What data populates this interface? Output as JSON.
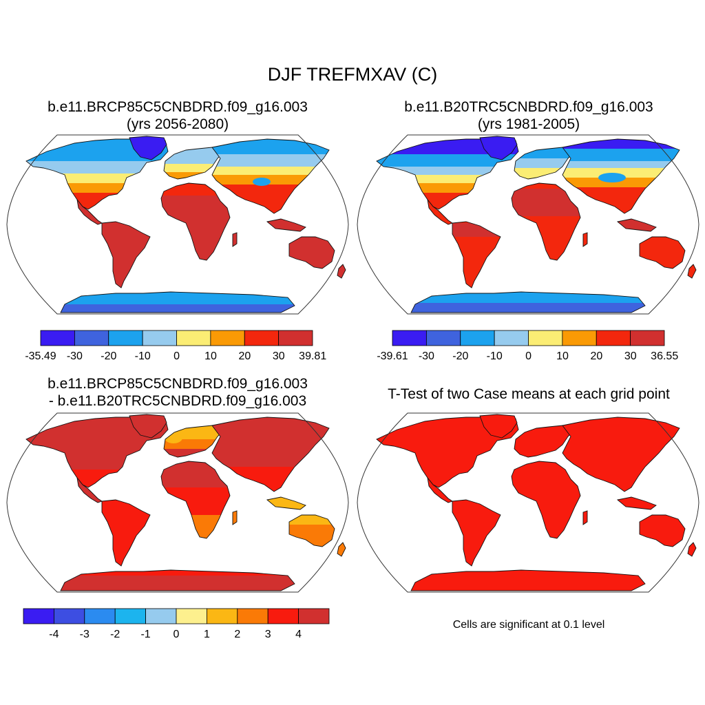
{
  "title": "DJF TREFMXAV (C)",
  "panels": [
    {
      "title_line1": "b.e11.BRCP85C5CNBDRD.f09_g16.003",
      "title_line2": "(yrs 2056-2080)",
      "colorbar": {
        "labels": [
          "-35.49",
          "-30",
          "-20",
          "-10",
          "0",
          "10",
          "20",
          "30",
          "39.81"
        ],
        "colors": [
          "#3a1cf2",
          "#3f63de",
          "#1ca2ee",
          "#96cbee",
          "#fbed74",
          "#fa9a05",
          "#f3270d",
          "#d1302f"
        ]
      }
    },
    {
      "title_line1": "b.e11.B20TRC5CNBDRD.f09_g16.003",
      "title_line2": "(yrs 1981-2005)",
      "colorbar": {
        "labels": [
          "-39.61",
          "-30",
          "-20",
          "-10",
          "0",
          "10",
          "20",
          "30",
          "36.55"
        ],
        "colors": [
          "#3a1cf2",
          "#3f63de",
          "#1ca2ee",
          "#96cbee",
          "#fbed74",
          "#fa9a05",
          "#f3270d",
          "#d1302f"
        ]
      }
    },
    {
      "title_line1": "b.e11.BRCP85C5CNBDRD.f09_g16.003",
      "title_line2": "- b.e11.B20TRC5CNBDRD.f09_g16.003",
      "colorbar": {
        "labels": [
          "-4",
          "-3",
          "-2",
          "-1",
          "0",
          "1",
          "2",
          "3",
          "4"
        ],
        "colors": [
          "#3a1cf2",
          "#3d4ee2",
          "#2b8bf0",
          "#1cb4ee",
          "#96cbee",
          "#fdf08e",
          "#fbb714",
          "#fa7a06",
          "#f81b0e",
          "#d1302f"
        ]
      }
    },
    {
      "title_line1": "T-Test of two Case means at each grid point",
      "note": "Cells are significant at 0.1 level",
      "fill_color": "#f81b0e"
    }
  ]
}
